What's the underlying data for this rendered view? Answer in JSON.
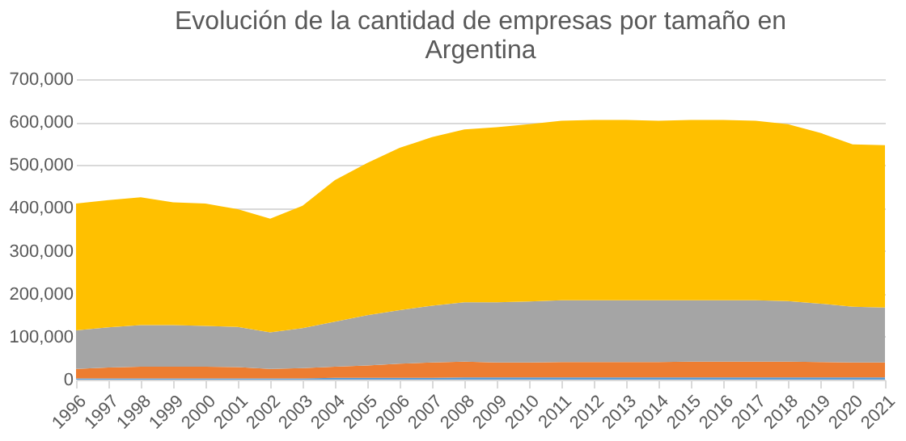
{
  "chart_data": {
    "type": "area",
    "title": "Evolución de la cantidad de empresas por tamaño en Argentina",
    "categories": [
      "1996",
      "1997",
      "1998",
      "1999",
      "2000",
      "2001",
      "2002",
      "2003",
      "2004",
      "2005",
      "2006",
      "2007",
      "2008",
      "2009",
      "2010",
      "2011",
      "2012",
      "2013",
      "2014",
      "2015",
      "2016",
      "2017",
      "2018",
      "2019",
      "2020",
      "2021"
    ],
    "stacked": true,
    "series": [
      {
        "color": "#5b9bd5",
        "values": [
          3000,
          3000,
          3000,
          3000,
          3000,
          3000,
          3000,
          3000,
          4000,
          4000,
          4000,
          4000,
          5000,
          5000,
          5000,
          5000,
          5000,
          5000,
          5000,
          5000,
          5000,
          5000,
          5000,
          5000,
          5000,
          5000
        ]
      },
      {
        "color": "#ed7d31",
        "values": [
          22000,
          25000,
          27000,
          27000,
          27000,
          26000,
          22000,
          24000,
          26000,
          29000,
          33000,
          36000,
          37000,
          35000,
          35000,
          36000,
          36000,
          36000,
          36000,
          37000,
          37000,
          37000,
          37000,
          36000,
          35000,
          35000
        ]
      },
      {
        "color": "#a5a5a5",
        "values": [
          90000,
          94000,
          97000,
          97000,
          95000,
          94000,
          85000,
          93000,
          105000,
          117000,
          125000,
          132000,
          138000,
          140000,
          142000,
          144000,
          144000,
          144000,
          144000,
          143000,
          143000,
          143000,
          141000,
          136000,
          130000,
          128000
        ]
      },
      {
        "color": "#ffc000",
        "values": [
          295000,
          296000,
          298000,
          286000,
          285000,
          274000,
          265000,
          285000,
          330000,
          355000,
          378000,
          393000,
          403000,
          408000,
          413000,
          418000,
          420000,
          420000,
          418000,
          420000,
          420000,
          418000,
          412000,
          398000,
          378000,
          378000
        ]
      }
    ],
    "ylim": [
      0,
      700000
    ],
    "yticks": [
      0,
      {
        "value": 100000,
        "label": "100,000"
      },
      {
        "value": 200000,
        "label": "200,000"
      },
      {
        "value": 300000,
        "label": "300,000"
      },
      {
        "value": 400000,
        "label": "400,000"
      },
      {
        "value": 500000,
        "label": "500,000"
      },
      {
        "value": 600000,
        "label": "600,000"
      },
      {
        "value": 700000,
        "label": "700,000"
      }
    ],
    "grid": "y",
    "legend": false
  }
}
